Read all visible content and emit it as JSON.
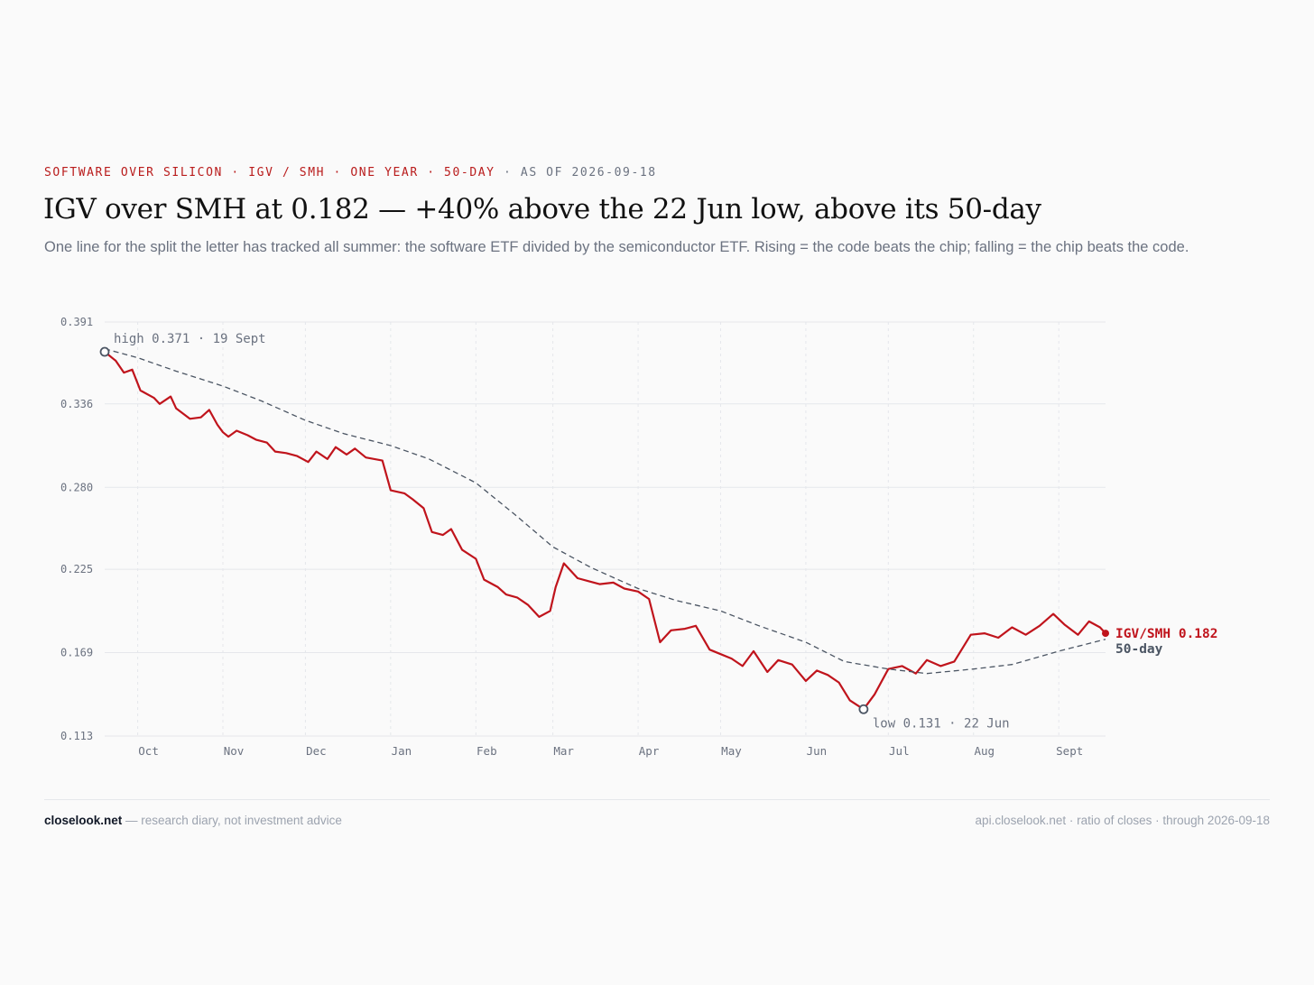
{
  "header": {
    "kicker_main": "SOFTWARE OVER SILICON · IGV / SMH · ONE YEAR · 50-DAY",
    "kicker_sep": " · ",
    "kicker_date": "AS OF 2026-09-18",
    "title": "IGV over SMH at 0.182 — +40% above the 22 Jun low, above its 50-day",
    "subtitle": "One line for the split the letter has tracked all summer: the software ETF divided by the semiconductor ETF. Rising = the code beats the chip; falling = the chip beats the code."
  },
  "chart_data": {
    "type": "line",
    "ylim": [
      0.113,
      0.391
    ],
    "yticks": [
      "0.391",
      "0.336",
      "0.280",
      "0.225",
      "0.169",
      "0.113"
    ],
    "x_range": [
      "2025-09-19",
      "2026-09-18"
    ],
    "month_ticks": [
      {
        "date": "2025-10-01",
        "label": "Oct"
      },
      {
        "date": "2025-11-01",
        "label": "Nov"
      },
      {
        "date": "2025-12-01",
        "label": "Dec"
      },
      {
        "date": "2026-01-01",
        "label": "Jan"
      },
      {
        "date": "2026-02-01",
        "label": "Feb"
      },
      {
        "date": "2026-03-01",
        "label": "Mar"
      },
      {
        "date": "2026-04-01",
        "label": "Apr"
      },
      {
        "date": "2026-05-01",
        "label": "May"
      },
      {
        "date": "2026-06-01",
        "label": "Jun"
      },
      {
        "date": "2026-07-01",
        "label": "Jul"
      },
      {
        "date": "2026-08-01",
        "label": "Aug"
      },
      {
        "date": "2026-09-01",
        "label": "Sept"
      }
    ],
    "grid": true,
    "colors": {
      "ratio": "#c0141c",
      "ma": "#4b5563"
    },
    "series": [
      {
        "name": "IGV/SMH",
        "end_label": "IGV/SMH 0.182",
        "style": "solid",
        "points": [
          [
            "2025-09-19",
            0.371
          ],
          [
            "2025-09-23",
            0.365
          ],
          [
            "2025-09-26",
            0.357
          ],
          [
            "2025-09-29",
            0.359
          ],
          [
            "2025-10-02",
            0.345
          ],
          [
            "2025-10-07",
            0.34
          ],
          [
            "2025-10-09",
            0.336
          ],
          [
            "2025-10-13",
            0.341
          ],
          [
            "2025-10-15",
            0.333
          ],
          [
            "2025-10-20",
            0.326
          ],
          [
            "2025-10-24",
            0.327
          ],
          [
            "2025-10-27",
            0.332
          ],
          [
            "2025-10-30",
            0.322
          ],
          [
            "2025-11-01",
            0.317
          ],
          [
            "2025-11-03",
            0.314
          ],
          [
            "2025-11-06",
            0.318
          ],
          [
            "2025-11-10",
            0.315
          ],
          [
            "2025-11-13",
            0.312
          ],
          [
            "2025-11-17",
            0.31
          ],
          [
            "2025-11-20",
            0.304
          ],
          [
            "2025-11-24",
            0.303
          ],
          [
            "2025-11-28",
            0.301
          ],
          [
            "2025-12-02",
            0.297
          ],
          [
            "2025-12-05",
            0.304
          ],
          [
            "2025-12-09",
            0.299
          ],
          [
            "2025-12-12",
            0.307
          ],
          [
            "2025-12-16",
            0.302
          ],
          [
            "2025-12-19",
            0.306
          ],
          [
            "2025-12-23",
            0.3
          ],
          [
            "2025-12-29",
            0.298
          ],
          [
            "2026-01-01",
            0.278
          ],
          [
            "2026-01-06",
            0.276
          ],
          [
            "2026-01-09",
            0.272
          ],
          [
            "2026-01-13",
            0.266
          ],
          [
            "2026-01-16",
            0.25
          ],
          [
            "2026-01-20",
            0.248
          ],
          [
            "2026-01-23",
            0.252
          ],
          [
            "2026-01-27",
            0.238
          ],
          [
            "2026-02-01",
            0.232
          ],
          [
            "2026-02-04",
            0.218
          ],
          [
            "2026-02-09",
            0.213
          ],
          [
            "2026-02-12",
            0.208
          ],
          [
            "2026-02-16",
            0.206
          ],
          [
            "2026-02-20",
            0.201
          ],
          [
            "2026-02-24",
            0.193
          ],
          [
            "2026-02-28",
            0.197
          ],
          [
            "2026-03-02",
            0.213
          ],
          [
            "2026-03-05",
            0.229
          ],
          [
            "2026-03-10",
            0.219
          ],
          [
            "2026-03-14",
            0.217
          ],
          [
            "2026-03-18",
            0.215
          ],
          [
            "2026-03-23",
            0.216
          ],
          [
            "2026-03-27",
            0.212
          ],
          [
            "2026-04-01",
            0.21
          ],
          [
            "2026-04-05",
            0.205
          ],
          [
            "2026-04-09",
            0.176
          ],
          [
            "2026-04-13",
            0.184
          ],
          [
            "2026-04-18",
            0.185
          ],
          [
            "2026-04-22",
            0.187
          ],
          [
            "2026-04-27",
            0.171
          ],
          [
            "2026-05-01",
            0.168
          ],
          [
            "2026-05-05",
            0.165
          ],
          [
            "2026-05-09",
            0.16
          ],
          [
            "2026-05-13",
            0.17
          ],
          [
            "2026-05-18",
            0.156
          ],
          [
            "2026-05-22",
            0.164
          ],
          [
            "2026-05-27",
            0.161
          ],
          [
            "2026-06-01",
            0.15
          ],
          [
            "2026-06-05",
            0.157
          ],
          [
            "2026-06-09",
            0.154
          ],
          [
            "2026-06-13",
            0.149
          ],
          [
            "2026-06-17",
            0.137
          ],
          [
            "2026-06-22",
            0.131
          ],
          [
            "2026-06-26",
            0.141
          ],
          [
            "2026-07-01",
            0.158
          ],
          [
            "2026-07-06",
            0.16
          ],
          [
            "2026-07-11",
            0.155
          ],
          [
            "2026-07-15",
            0.164
          ],
          [
            "2026-07-20",
            0.16
          ],
          [
            "2026-07-25",
            0.163
          ],
          [
            "2026-07-31",
            0.181
          ],
          [
            "2026-08-05",
            0.182
          ],
          [
            "2026-08-10",
            0.179
          ],
          [
            "2026-08-15",
            0.186
          ],
          [
            "2026-08-20",
            0.181
          ],
          [
            "2026-08-25",
            0.187
          ],
          [
            "2026-08-30",
            0.195
          ],
          [
            "2026-09-03",
            0.188
          ],
          [
            "2026-09-08",
            0.181
          ],
          [
            "2026-09-12",
            0.19
          ],
          [
            "2026-09-16",
            0.186
          ],
          [
            "2026-09-18",
            0.182
          ]
        ]
      },
      {
        "name": "50-day",
        "end_label": "50-day",
        "style": "dashed",
        "points": [
          [
            "2025-09-19",
            0.373
          ],
          [
            "2025-10-01",
            0.367
          ],
          [
            "2025-10-15",
            0.358
          ],
          [
            "2025-11-01",
            0.348
          ],
          [
            "2025-11-15",
            0.338
          ],
          [
            "2025-12-01",
            0.325
          ],
          [
            "2025-12-15",
            0.316
          ],
          [
            "2026-01-01",
            0.308
          ],
          [
            "2026-01-15",
            0.299
          ],
          [
            "2026-02-01",
            0.283
          ],
          [
            "2026-02-15",
            0.262
          ],
          [
            "2026-03-01",
            0.24
          ],
          [
            "2026-03-15",
            0.226
          ],
          [
            "2026-04-01",
            0.212
          ],
          [
            "2026-04-15",
            0.204
          ],
          [
            "2026-05-01",
            0.197
          ],
          [
            "2026-05-15",
            0.187
          ],
          [
            "2026-06-01",
            0.176
          ],
          [
            "2026-06-15",
            0.163
          ],
          [
            "2026-07-01",
            0.158
          ],
          [
            "2026-07-15",
            0.155
          ],
          [
            "2026-08-01",
            0.158
          ],
          [
            "2026-08-15",
            0.161
          ],
          [
            "2026-09-01",
            0.17
          ],
          [
            "2026-09-18",
            0.178
          ]
        ]
      }
    ],
    "annotations": [
      {
        "date": "2025-09-19",
        "value": 0.371,
        "label": "high 0.371 · 19 Sept"
      },
      {
        "date": "2026-06-22",
        "value": 0.131,
        "label": "low 0.131 · 22 Jun"
      }
    ]
  },
  "footer": {
    "brand": "closelook.net",
    "tagline": " — research diary, not investment advice",
    "source": "api.closelook.net · ratio of closes · through 2026-09-18"
  }
}
